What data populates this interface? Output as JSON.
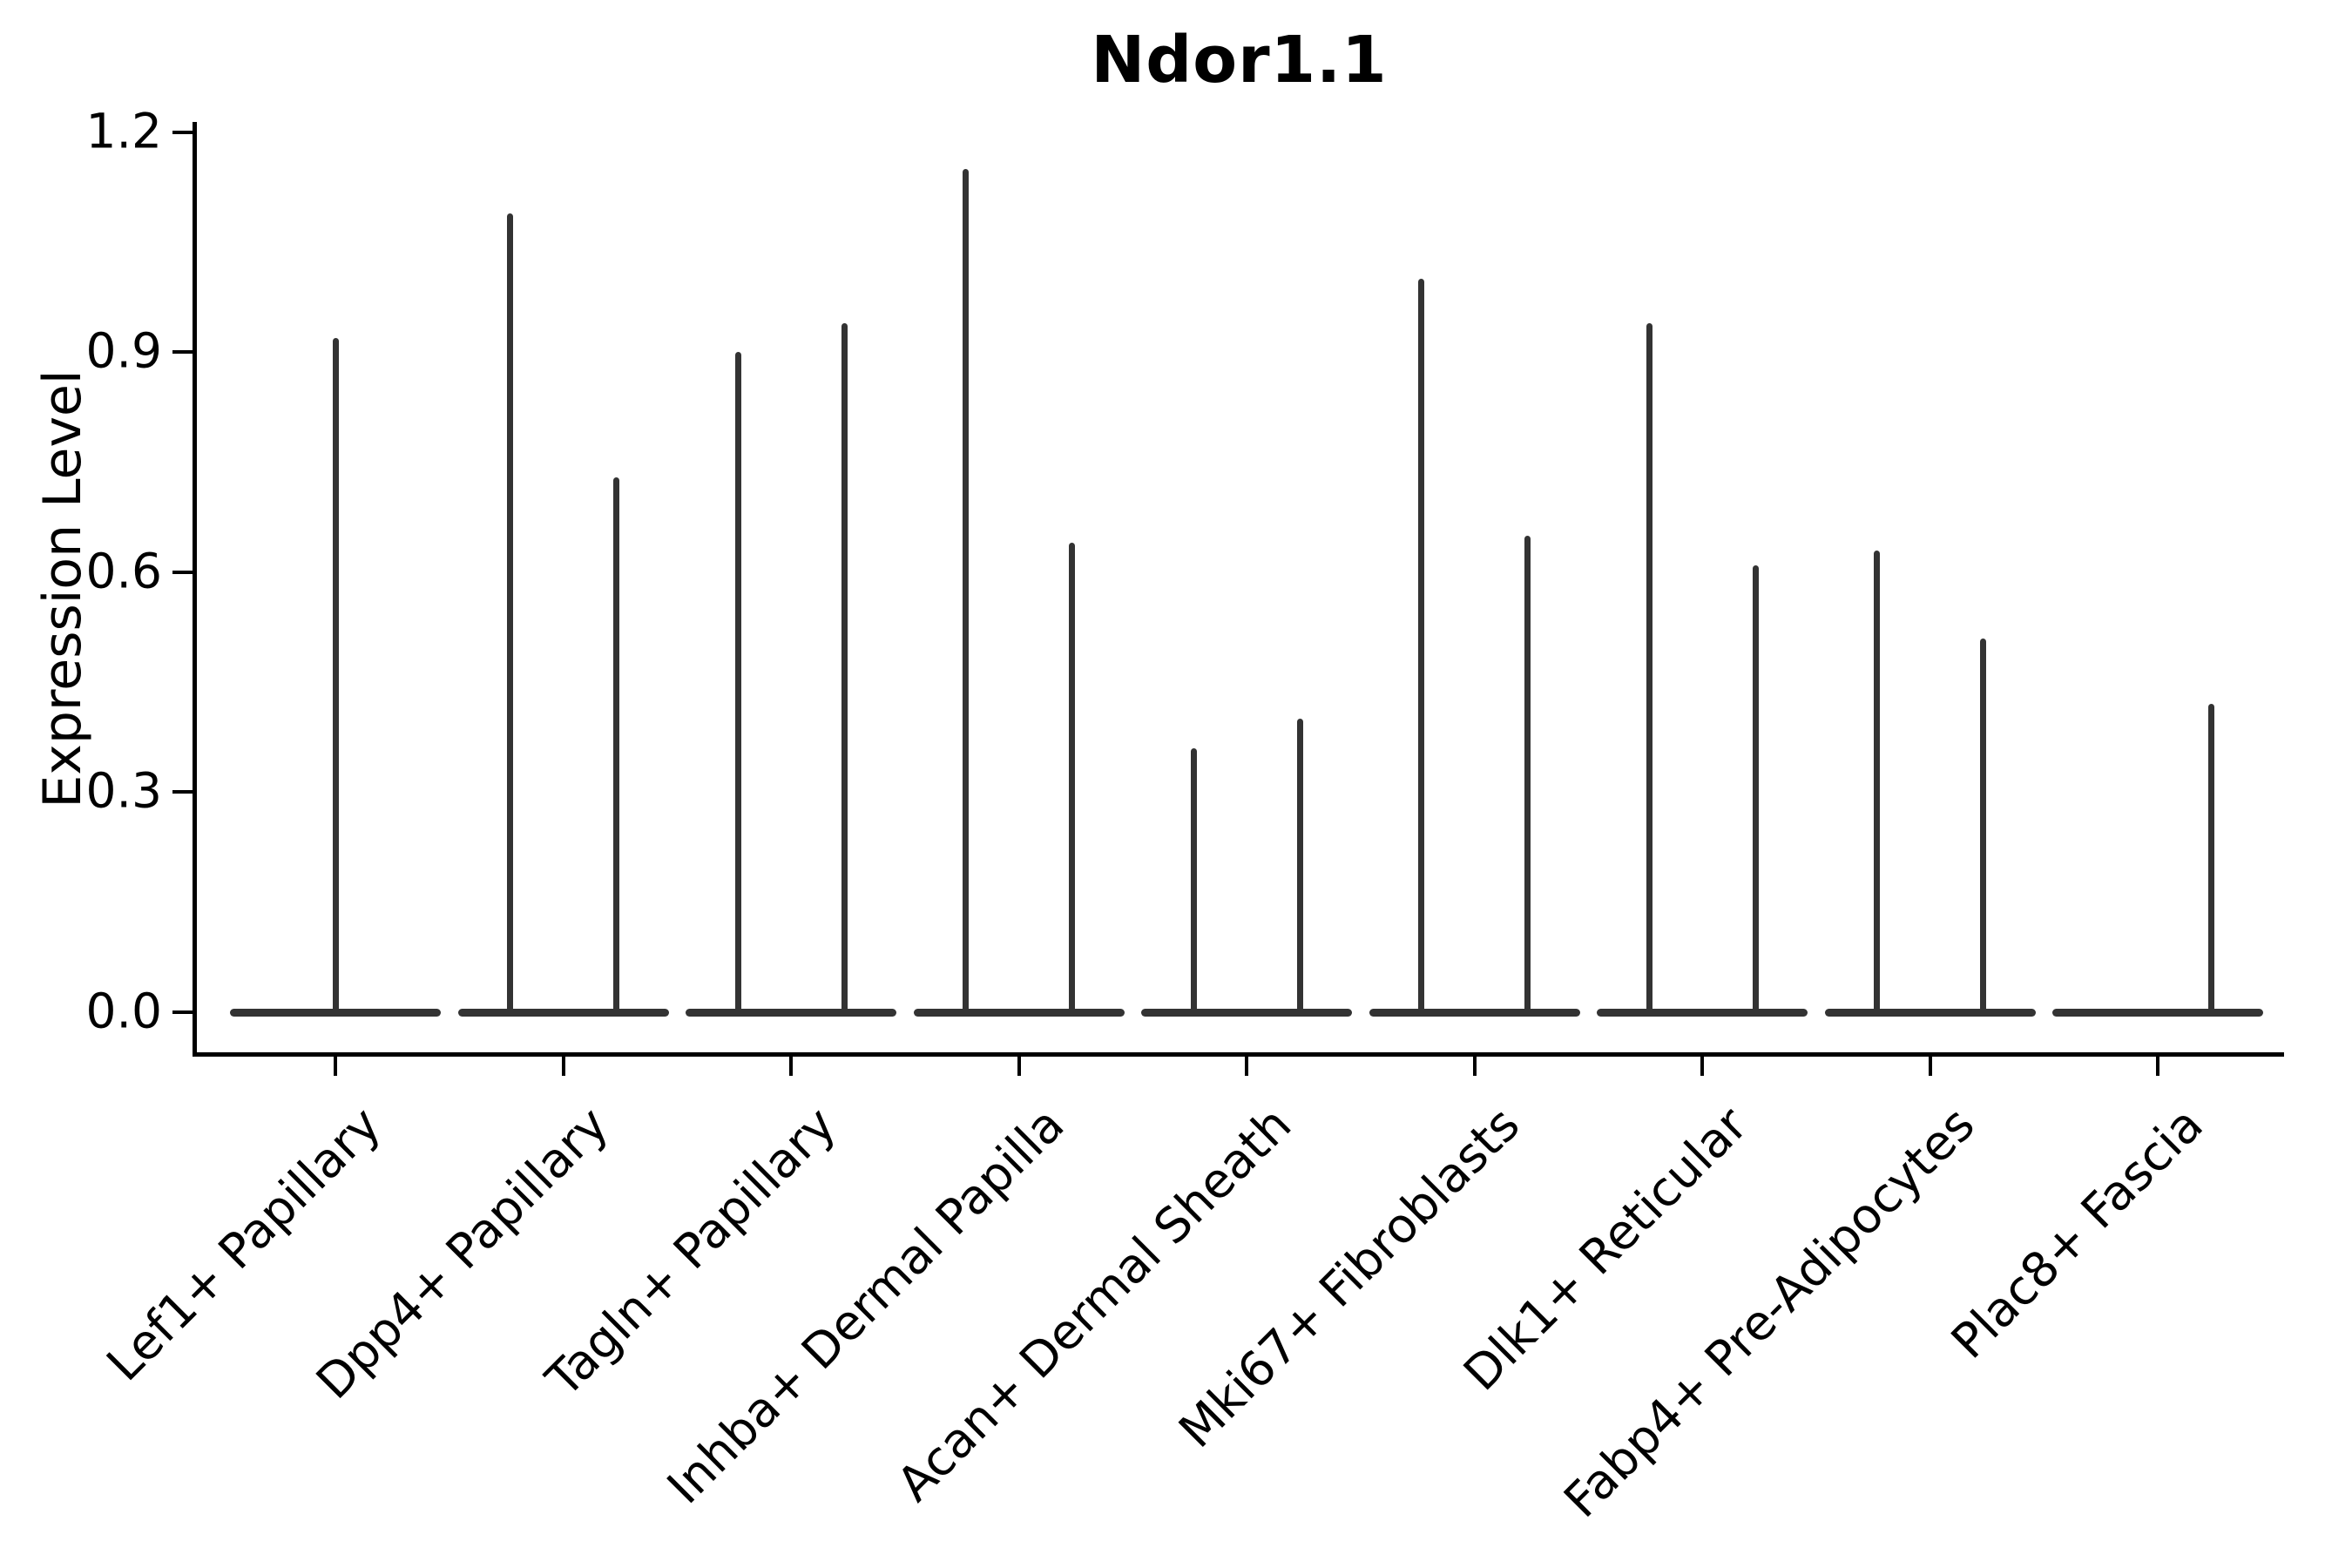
{
  "title": "Ndor1.1",
  "ylabel": "Expression Level",
  "chart_data": {
    "type": "violin",
    "title": "Ndor1.1",
    "xlabel": "",
    "ylabel": "Expression Level",
    "ylim": [
      0.0,
      1.2
    ],
    "yticks": [
      "0.0",
      "0.3",
      "0.6",
      "0.9",
      "1.2"
    ],
    "ytick_values": [
      0.0,
      0.3,
      0.6,
      0.9,
      1.2
    ],
    "grid": false,
    "legend": "none",
    "categories": [
      "Lef1+ Papillary",
      "Dpp4+ Papillary",
      "Tagln+ Papillary",
      "Inhba+ Dermal Papilla",
      "Acan+ Dermal Sheath",
      "Mki67+ Fibroblasts",
      "Dlk1+ Reticular",
      "Fabp4+ Pre-Adipocytes",
      "Plac8+ Fascia"
    ],
    "description": "Very narrow needle-like violins: a wide flat density base at expression 0 for every category plus thin vertical spikes reaching the maximum expression value of each violin.",
    "violins": [
      {
        "category": "Lef1+ Papillary",
        "slot": "center",
        "max_expression": 0.92
      },
      {
        "category": "Dpp4+ Papillary",
        "slot": "left",
        "max_expression": 1.09
      },
      {
        "category": "Dpp4+ Papillary",
        "slot": "right",
        "max_expression": 0.73
      },
      {
        "category": "Tagln+ Papillary",
        "slot": "left",
        "max_expression": 0.9
      },
      {
        "category": "Tagln+ Papillary",
        "slot": "right",
        "max_expression": 0.94
      },
      {
        "category": "Inhba+ Dermal Papilla",
        "slot": "left",
        "max_expression": 1.15
      },
      {
        "category": "Inhba+ Dermal Papilla",
        "slot": "right",
        "max_expression": 0.64
      },
      {
        "category": "Acan+ Dermal Sheath",
        "slot": "left",
        "max_expression": 0.36
      },
      {
        "category": "Acan+ Dermal Sheath",
        "slot": "right",
        "max_expression": 0.4
      },
      {
        "category": "Mki67+ Fibroblasts",
        "slot": "left",
        "max_expression": 1.0
      },
      {
        "category": "Mki67+ Fibroblasts",
        "slot": "right",
        "max_expression": 0.65
      },
      {
        "category": "Dlk1+ Reticular",
        "slot": "left",
        "max_expression": 0.94
      },
      {
        "category": "Dlk1+ Reticular",
        "slot": "right",
        "max_expression": 0.61
      },
      {
        "category": "Fabp4+ Pre-Adipocytes",
        "slot": "left",
        "max_expression": 0.63
      },
      {
        "category": "Fabp4+ Pre-Adipocytes",
        "slot": "right",
        "max_expression": 0.51
      },
      {
        "category": "Plac8+ Fascia",
        "slot": "right",
        "max_expression": 0.42
      }
    ],
    "colors": {
      "violin": "#333333",
      "axis": "#000000",
      "text": "#000000",
      "background": "#ffffff"
    }
  }
}
